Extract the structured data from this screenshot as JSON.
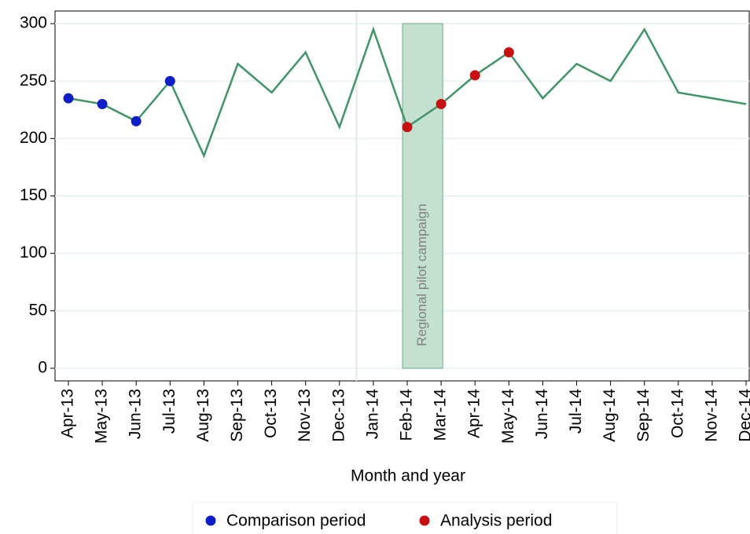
{
  "chart_data": {
    "type": "line",
    "x_label": "Month and year",
    "categories": [
      "Apr-13",
      "May-13",
      "Jun-13",
      "Jul-13",
      "Aug-13",
      "Sep-13",
      "Oct-13",
      "Nov-13",
      "Dec-13",
      "Jan-14",
      "Feb-14",
      "Mar-14",
      "Apr-14",
      "May-14",
      "Jun-14",
      "Jul-14",
      "Aug-14",
      "Sep-14",
      "Oct-14",
      "Nov-14",
      "Dec-14"
    ],
    "line": {
      "color": "#3f9566",
      "values": [
        235,
        230,
        215,
        250,
        185,
        265,
        240,
        275,
        210,
        295,
        210,
        230,
        255,
        275,
        235,
        265,
        250,
        295,
        240,
        235,
        230
      ]
    },
    "series": [
      {
        "name": "Comparison period",
        "color": "#0f1dc8",
        "values": [
          235,
          230,
          215,
          250,
          null,
          null,
          null,
          null,
          null,
          null,
          null,
          null,
          null,
          null,
          null,
          null,
          null,
          null,
          null,
          null,
          null
        ]
      },
      {
        "name": "Analysis period",
        "color": "#c81010",
        "values": [
          null,
          null,
          null,
          null,
          null,
          null,
          null,
          null,
          null,
          null,
          210,
          230,
          255,
          275,
          null,
          null,
          null,
          null,
          null,
          null,
          null
        ]
      }
    ],
    "shaded_region": {
      "label": "Regional pilot campaign",
      "from": "Feb-14",
      "to": "Mar-14",
      "range": [
        0,
        300
      ],
      "color": "#c3e0d0"
    },
    "vline_between": [
      "Dec-13",
      "Jan-14"
    ],
    "ylim": [
      -11,
      311
    ],
    "yticks": [
      0,
      50,
      100,
      150,
      200,
      250,
      300
    ],
    "grid": true,
    "legend": "bottom"
  }
}
